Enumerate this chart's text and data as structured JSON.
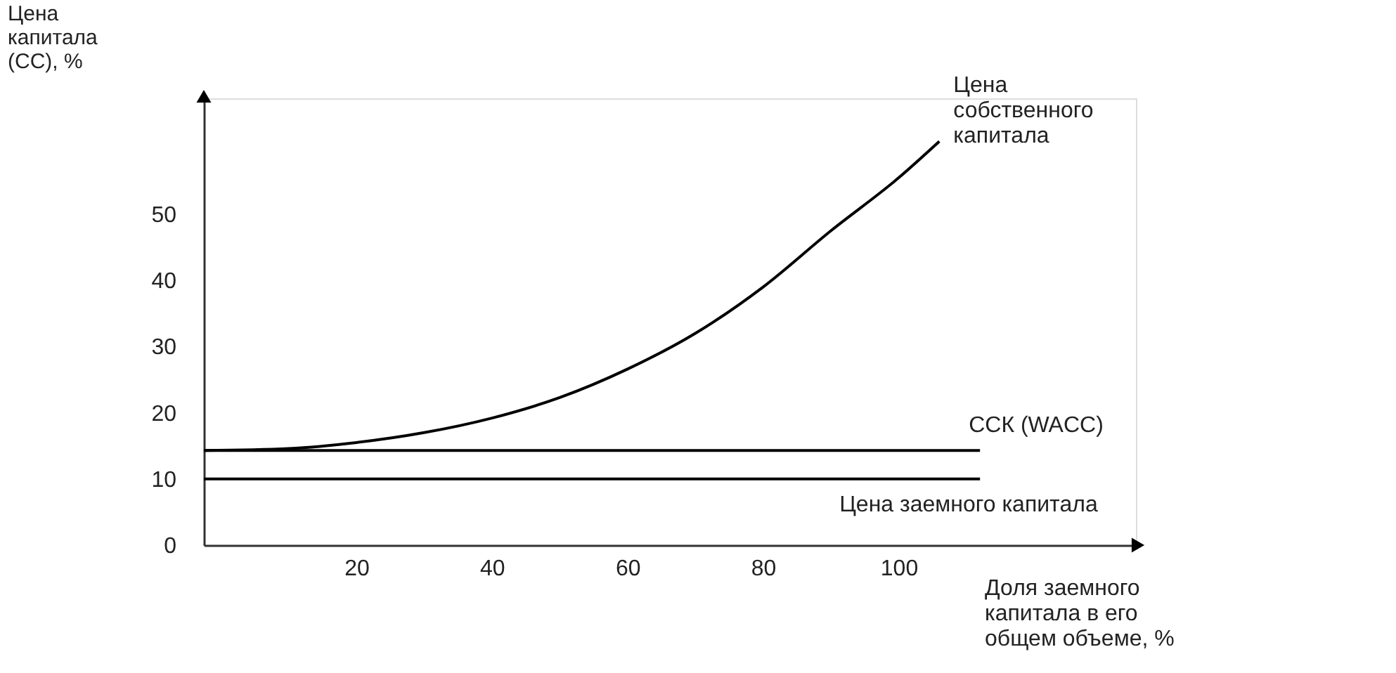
{
  "chart_data": {
    "type": "line",
    "xlabel": "Доля заемного\nкапитала в его\nобщем объеме, %",
    "ylabel": "Цена\nкапитала\n(СС), %",
    "xlim": [
      -2.5,
      135
    ],
    "xticks": [
      20,
      40,
      60,
      80,
      100
    ],
    "ylim": [
      0,
      67.5
    ],
    "yticks": [
      0,
      10,
      20,
      30,
      40,
      50
    ],
    "grid": false,
    "marker": "none",
    "line_style": "solid",
    "series": [
      {
        "name": "Цена\nсобственного\nкапитала",
        "color": "#000000",
        "x": [
          -2.5,
          10,
          20,
          30,
          40,
          50,
          60,
          70,
          80,
          90,
          100,
          106
        ],
        "values": [
          14.3,
          14.6,
          15.5,
          17,
          19.2,
          22.3,
          26.6,
          32,
          39,
          47.5,
          55.5,
          61
        ]
      },
      {
        "name": "ССК (WACC)",
        "color": "#000000",
        "x": [
          -2.5,
          112
        ],
        "values": [
          14.3,
          14.3
        ]
      },
      {
        "name": "Цена заемного капитала",
        "color": "#000000",
        "x": [
          -2.5,
          112
        ],
        "values": [
          10,
          10
        ]
      }
    ]
  }
}
